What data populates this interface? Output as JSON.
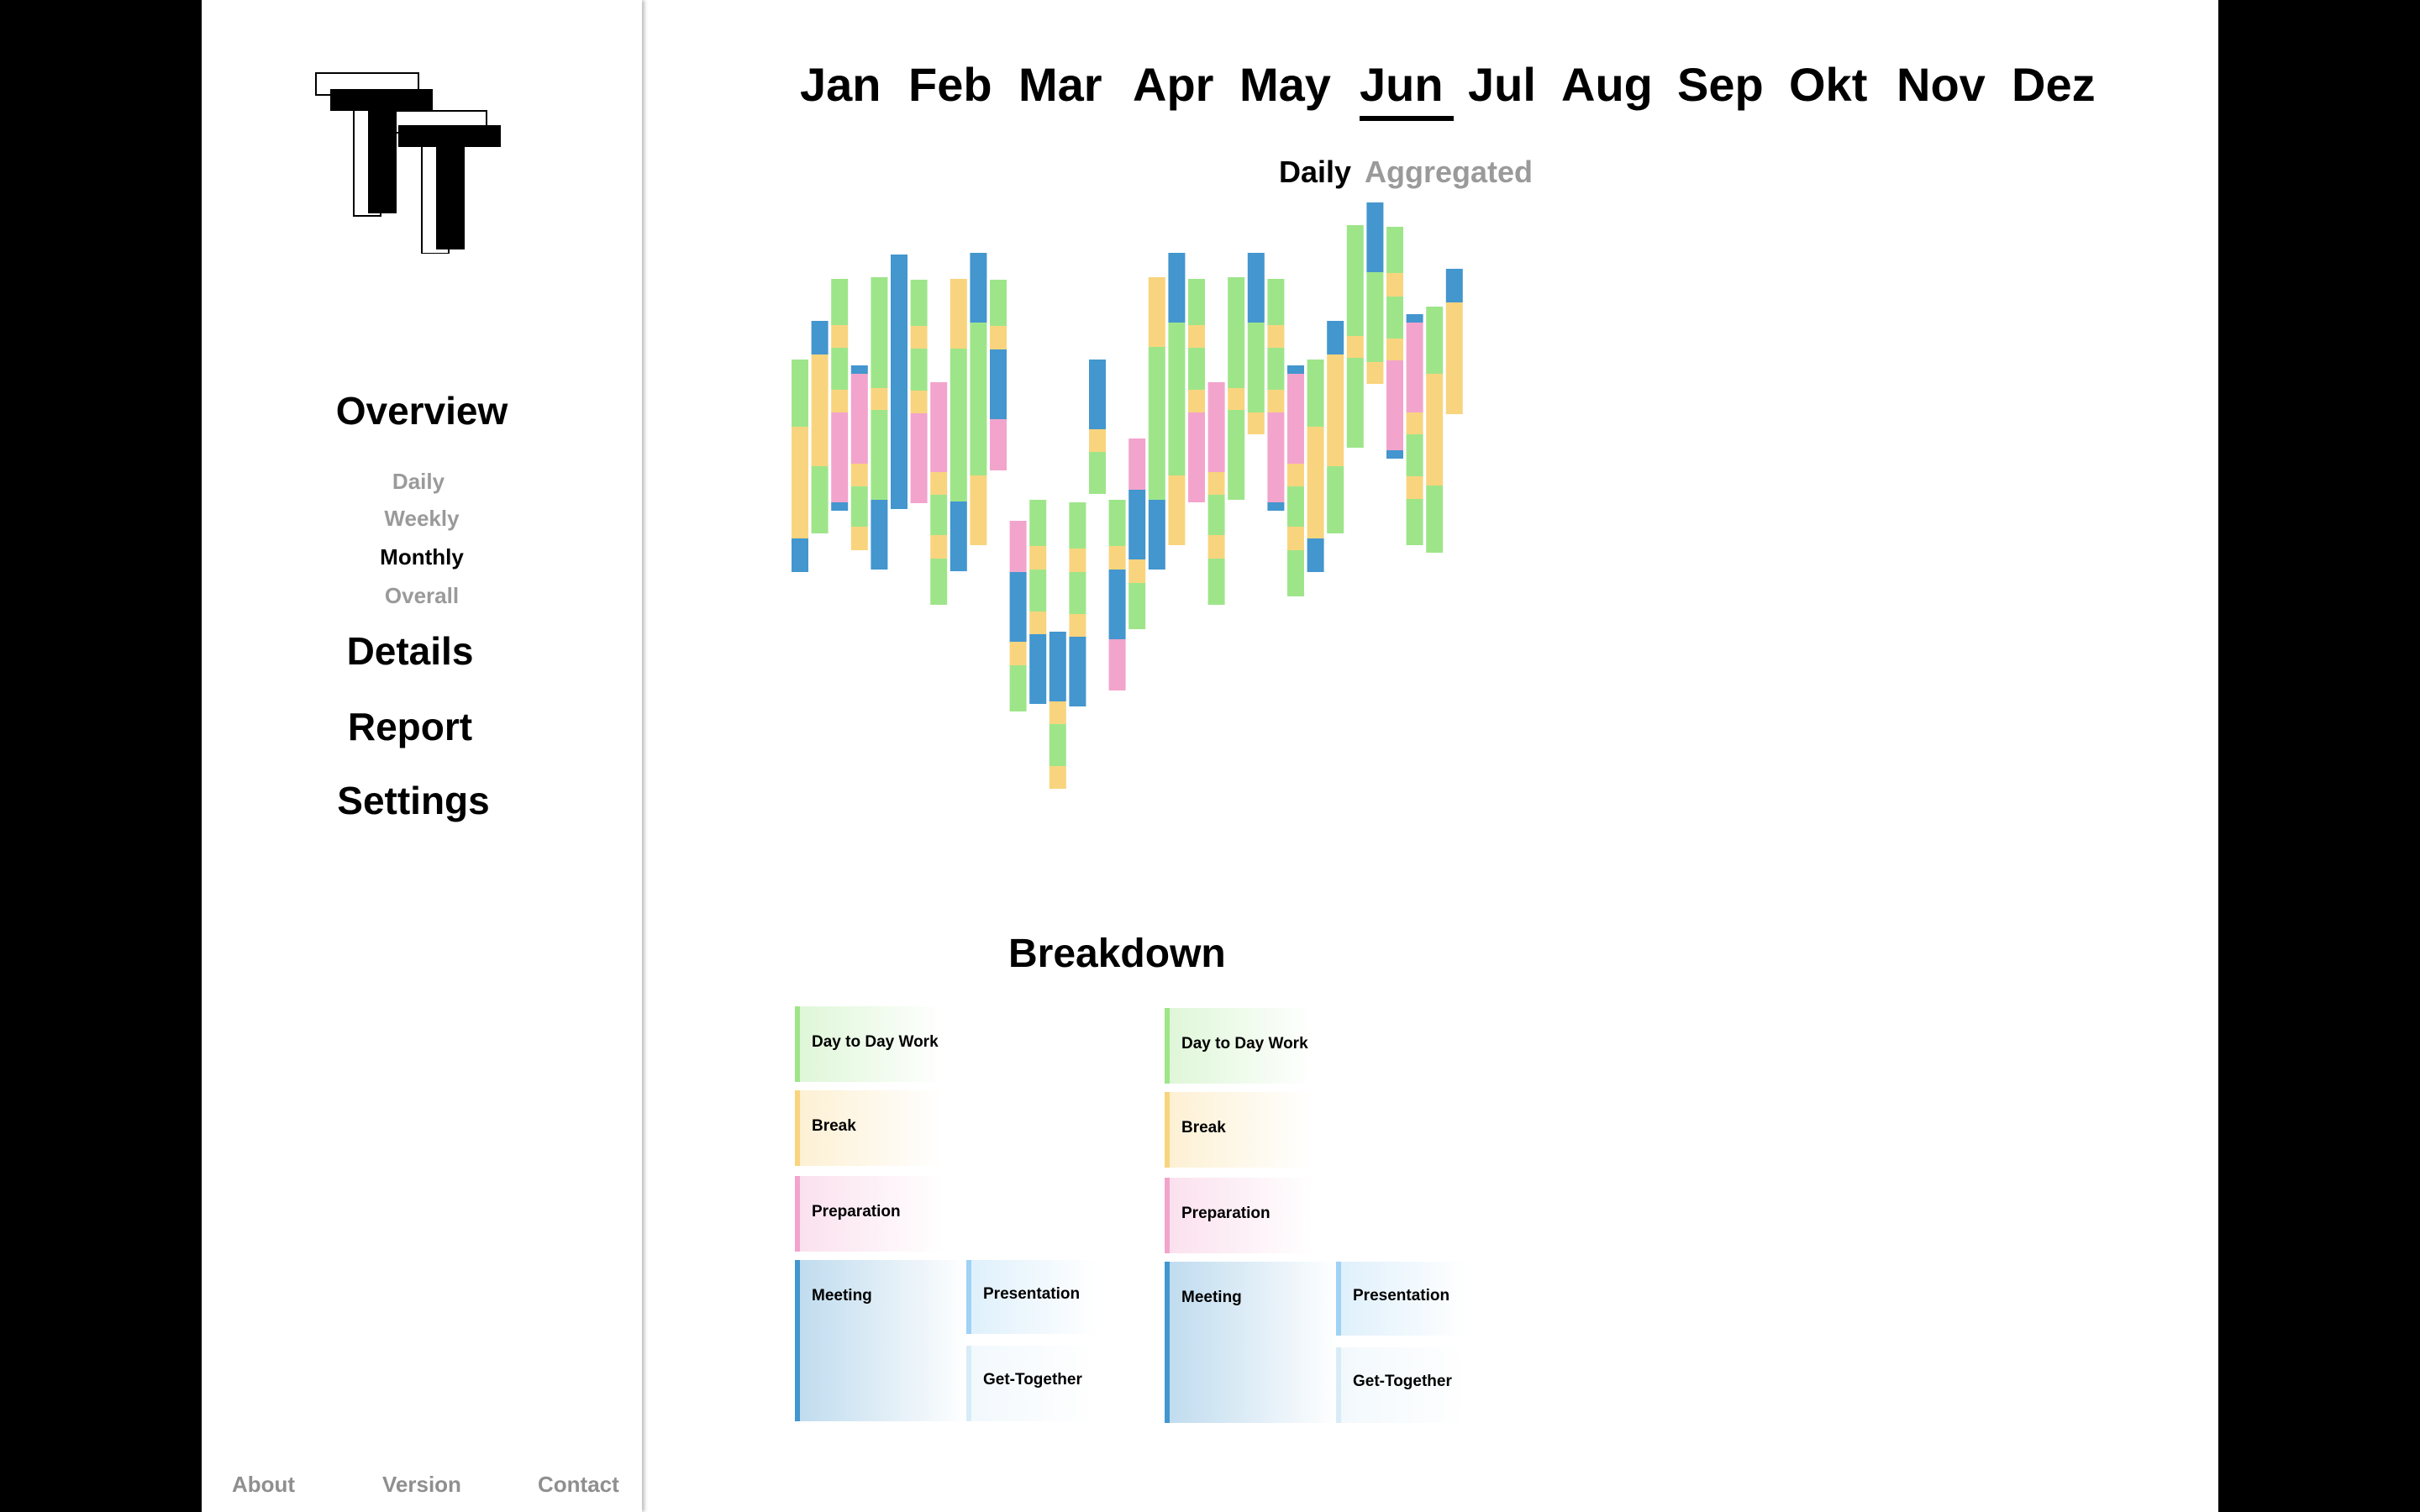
{
  "sidebar": {
    "nav": {
      "overview": "Overview",
      "sub": [
        "Daily",
        "Weekly",
        "Monthly",
        "Overall"
      ],
      "active_sub": "Monthly",
      "details": "Details",
      "report": "Report",
      "settings": "Settings"
    },
    "footer": {
      "about": "About",
      "version": "Version",
      "contact": "Contact"
    }
  },
  "header": {
    "months": [
      "Jan",
      "Feb",
      "Mar",
      "Apr",
      "May",
      "Jun",
      "Jul",
      "Aug",
      "Sep",
      "Okt",
      "Nov",
      "Dez"
    ],
    "active_month": "Jun",
    "toggles": [
      "Daily",
      "Aggregated"
    ],
    "active_toggle": "Daily"
  },
  "colors": {
    "day_to_day_work": "#9ee58a",
    "break": "#f9d47e",
    "preparation": "#f2a4cc",
    "meeting": "#4396ce",
    "presentation": "#9fd2f5",
    "get_together": "#d8ecf8"
  },
  "chart_data": {
    "type": "bar",
    "stacked": true,
    "grid": false,
    "series_keys": [
      "day_to_day_work",
      "break",
      "preparation",
      "meeting"
    ],
    "bars": [
      [
        [
          "g",
          80
        ],
        [
          "y",
          133
        ],
        [
          "b",
          40
        ]
      ],
      [
        [
          "b",
          40
        ],
        [
          "y",
          133
        ],
        [
          "g",
          80
        ]
      ],
      [
        [
          "g",
          55
        ],
        [
          "y",
          27
        ],
        [
          "g",
          50
        ],
        [
          "y",
          27
        ],
        [
          "p",
          107
        ],
        [
          "b",
          10
        ]
      ],
      [
        [
          "b",
          10
        ],
        [
          "p",
          107
        ],
        [
          "y",
          27
        ],
        [
          "g",
          48
        ],
        [
          "y",
          28
        ]
      ],
      [
        [
          "g",
          132
        ],
        [
          "y",
          26
        ],
        [
          "g",
          107
        ],
        [
          "b",
          83
        ]
      ],
      [
        [
          "b",
          303
        ]
      ],
      [
        [
          "g",
          55
        ],
        [
          "y",
          27
        ],
        [
          "g",
          50
        ],
        [
          "y",
          27
        ],
        [
          "p",
          107
        ]
      ],
      [
        [
          "p",
          107
        ],
        [
          "y",
          27
        ],
        [
          "g",
          48
        ],
        [
          "y",
          28
        ],
        [
          "g",
          55
        ]
      ],
      [
        [
          "y",
          83
        ],
        [
          "g",
          182
        ],
        [
          "b",
          83
        ]
      ],
      [
        [
          "b",
          83
        ],
        [
          "g",
          182
        ],
        [
          "y",
          83
        ]
      ],
      [
        [
          "g",
          55
        ],
        [
          "y",
          28
        ],
        [
          "b",
          83
        ],
        [
          "p",
          61
        ]
      ],
      [
        [
          "p",
          61
        ],
        [
          "b",
          83
        ],
        [
          "y",
          28
        ],
        [
          "g",
          55
        ]
      ],
      [
        [
          "g",
          55
        ],
        [
          "y",
          28
        ],
        [
          "g",
          50
        ],
        [
          "y",
          27
        ],
        [
          "b",
          83
        ]
      ],
      [
        [
          "b",
          83
        ],
        [
          "y",
          27
        ],
        [
          "g",
          50
        ],
        [
          "y",
          27
        ]
      ],
      [
        [
          "g",
          55
        ],
        [
          "y",
          28
        ],
        [
          "g",
          50
        ],
        [
          "y",
          27
        ],
        [
          "b",
          83
        ]
      ],
      [
        [
          "b",
          83
        ],
        [
          "y",
          27
        ],
        [
          "g",
          50
        ]
      ],
      [
        [
          "g",
          55
        ],
        [
          "y",
          28
        ],
        [
          "b",
          83
        ],
        [
          "p",
          61
        ]
      ],
      [
        [
          "p",
          61
        ],
        [
          "b",
          83
        ],
        [
          "y",
          28
        ],
        [
          "g",
          55
        ]
      ],
      [
        [
          "y",
          83
        ],
        [
          "g",
          182
        ],
        [
          "b",
          83
        ]
      ],
      [
        [
          "b",
          83
        ],
        [
          "g",
          182
        ],
        [
          "y",
          83
        ]
      ],
      [
        [
          "g",
          55
        ],
        [
          "y",
          27
        ],
        [
          "g",
          50
        ],
        [
          "y",
          27
        ],
        [
          "p",
          107
        ]
      ],
      [
        [
          "p",
          107
        ],
        [
          "y",
          27
        ],
        [
          "g",
          48
        ],
        [
          "y",
          28
        ],
        [
          "g",
          55
        ]
      ],
      [
        [
          "g",
          132
        ],
        [
          "y",
          26
        ],
        [
          "g",
          107
        ]
      ],
      [
        [
          "b",
          83
        ],
        [
          "g",
          107
        ],
        [
          "y",
          26
        ]
      ],
      [
        [
          "g",
          55
        ],
        [
          "y",
          27
        ],
        [
          "g",
          50
        ],
        [
          "y",
          27
        ],
        [
          "p",
          107
        ],
        [
          "b",
          10
        ]
      ],
      [
        [
          "b",
          10
        ],
        [
          "p",
          107
        ],
        [
          "y",
          27
        ],
        [
          "g",
          48
        ],
        [
          "y",
          28
        ],
        [
          "g",
          55
        ]
      ],
      [
        [
          "g",
          80
        ],
        [
          "y",
          133
        ],
        [
          "b",
          40
        ]
      ],
      [
        [
          "b",
          40
        ],
        [
          "y",
          133
        ],
        [
          "g",
          80
        ]
      ],
      [
        [
          "g",
          132
        ],
        [
          "y",
          26
        ],
        [
          "g",
          107
        ]
      ],
      [
        [
          "b",
          83
        ],
        [
          "g",
          107
        ],
        [
          "y",
          26
        ]
      ],
      [
        [
          "g",
          55
        ],
        [
          "y",
          28
        ],
        [
          "g",
          50
        ],
        [
          "y",
          26
        ],
        [
          "p",
          107
        ],
        [
          "b",
          10
        ]
      ],
      [
        [
          "b",
          10
        ],
        [
          "p",
          107
        ],
        [
          "y",
          26
        ],
        [
          "g",
          50
        ],
        [
          "y",
          27
        ],
        [
          "g",
          55
        ]
      ],
      [
        [
          "g",
          80
        ],
        [
          "y",
          133
        ],
        [
          "g",
          80
        ]
      ],
      [
        [
          "b",
          40
        ],
        [
          "y",
          133
        ]
      ]
    ],
    "bar_offsets": [
      70,
      7,
      0,
      55,
      0,
      0,
      55,
      67,
      0,
      0,
      0,
      157,
      52,
      158,
      52,
      143,
      52,
      103,
      0,
      0,
      0,
      67,
      0,
      0,
      0,
      55,
      52,
      27,
      -34,
      0,
      -34,
      11,
      18,
      -7
    ]
  },
  "breakdown": {
    "title": "Breakdown",
    "columns": [
      {
        "day_to_day_work": "Day to Day Work",
        "break": "Break",
        "preparation": "Preparation",
        "meeting": "Meeting",
        "presentation": "Presentation",
        "get_together": "Get-Together"
      },
      {
        "day_to_day_work": "Day to Day Work",
        "break": "Break",
        "preparation": "Preparation",
        "meeting": "Meeting",
        "presentation": "Presentation",
        "get_together": "Get-Together"
      }
    ]
  }
}
